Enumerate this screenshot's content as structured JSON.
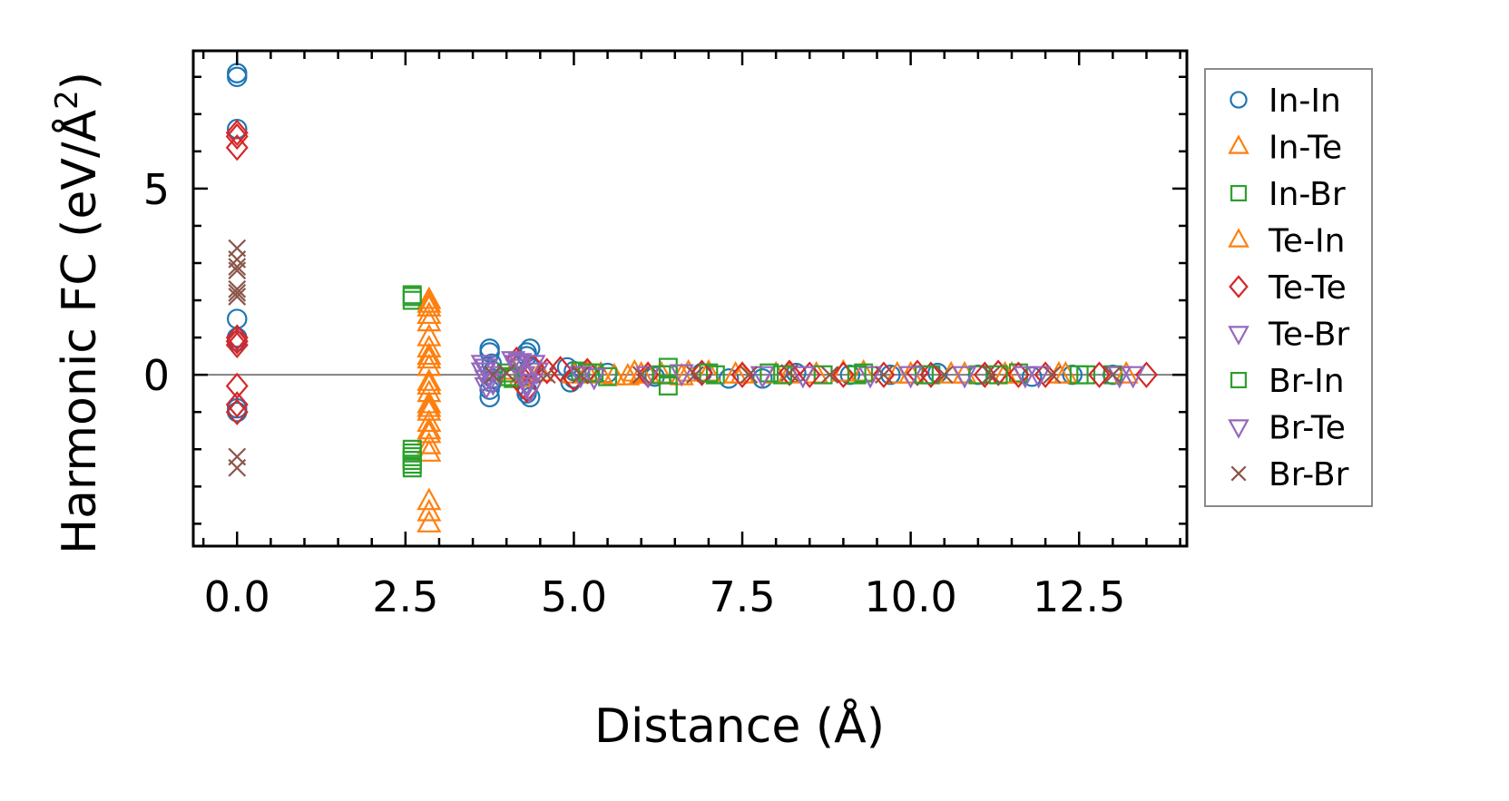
{
  "chart_data": {
    "type": "scatter",
    "title": "",
    "xlabel": "Distance (Å)",
    "ylabel": "Harmonic FC (eV/Å",
    "ylabel_sup": "2",
    "ylabel_tail": ")",
    "xlim": [
      -0.65,
      14.1
    ],
    "ylim": [
      -4.6,
      8.7
    ],
    "xticks": [
      0.0,
      2.5,
      5.0,
      7.5,
      10.0,
      12.5
    ],
    "xtick_labels": [
      "0.0",
      "2.5",
      "5.0",
      "7.5",
      "10.0",
      "12.5"
    ],
    "yticks": [
      0,
      5
    ],
    "ytick_labels": [
      "0",
      "5"
    ],
    "reference_line_y": 0,
    "legend_position": "right-outside",
    "series": [
      {
        "name": "In-In",
        "marker": "circle",
        "color": "#1f77b4",
        "x": [
          0,
          0,
          0,
          0,
          0,
          0,
          0,
          0,
          3.75,
          3.75,
          3.75,
          3.75,
          3.78,
          3.78,
          3.8,
          3.8,
          4.3,
          4.3,
          4.3,
          4.3,
          4.35,
          4.35,
          4.35,
          4.9,
          4.95,
          5.0,
          5.0,
          5.5,
          6.2,
          6.9,
          7.3,
          7.8,
          8.3,
          9.1,
          9.7,
          10.4,
          11.0,
          11.8,
          12.4,
          13.0
        ],
        "y": [
          8.1,
          8.0,
          6.6,
          1.5,
          1.0,
          0.9,
          -0.9,
          -1.0,
          0.7,
          0.6,
          -0.4,
          -0.6,
          0.3,
          -0.2,
          0.1,
          -0.1,
          0.6,
          0.5,
          -0.4,
          -0.5,
          0.7,
          -0.6,
          0.2,
          0.2,
          -0.2,
          0.1,
          -0.1,
          0.05,
          -0.05,
          0.05,
          -0.1,
          -0.1,
          0.05,
          0.0,
          0.0,
          0.05,
          0.0,
          -0.05,
          0.0,
          0.0
        ]
      },
      {
        "name": "In-Te",
        "marker": "triangle-up",
        "color": "#ff7f0e",
        "x": [
          2.85,
          2.85,
          2.85,
          2.85,
          2.85,
          2.85,
          2.85,
          2.85,
          2.85,
          2.85,
          2.85,
          2.85,
          2.85,
          2.85,
          2.85,
          2.85,
          2.85,
          2.85,
          4.1,
          4.2,
          4.5,
          5.0,
          5.4,
          5.6,
          5.9,
          6.1,
          6.3,
          6.6,
          7.0,
          7.5,
          8.0,
          8.6,
          9.3,
          10.0,
          10.8,
          11.5,
          12.3
        ],
        "y": [
          2.0,
          1.8,
          1.6,
          1.0,
          0.7,
          0.5,
          0.2,
          -0.2,
          -0.5,
          -0.8,
          -1.0,
          -1.3,
          -1.6,
          -1.9,
          -2.1,
          -3.4,
          -3.7,
          -4.0,
          0.1,
          -0.1,
          0.05,
          0.0,
          0.0,
          -0.05,
          0.05,
          0.0,
          0.0,
          -0.05,
          0.05,
          0.0,
          0.0,
          0.0,
          0.05,
          0.0,
          0.0,
          0.0,
          0.0
        ]
      },
      {
        "name": "In-Br",
        "marker": "square",
        "color": "#2ca02c",
        "x": [
          2.6,
          2.6,
          2.6,
          2.6,
          2.6,
          2.6,
          2.6,
          4.0,
          4.1,
          5.1,
          5.3,
          5.5,
          6.4,
          6.4,
          6.4,
          7.1,
          7.9,
          8.7,
          9.3,
          10.3,
          11.0,
          11.6,
          12.6,
          13.0
        ],
        "y": [
          2.1,
          2.0,
          -2.0,
          -2.1,
          -2.3,
          -2.4,
          -2.5,
          0.05,
          -0.1,
          0.1,
          0.05,
          -0.05,
          0.2,
          0.0,
          -0.3,
          0.0,
          0.05,
          0.0,
          0.05,
          0.0,
          0.0,
          0.05,
          0.0,
          0.0
        ]
      },
      {
        "name": "Te-In",
        "marker": "triangle-up",
        "color": "#ff7f0e",
        "x": [
          2.85,
          2.85,
          2.85,
          2.85,
          2.85,
          2.85,
          4.3,
          5.2,
          5.8,
          6.0,
          6.7,
          7.4,
          8.2,
          9.0,
          9.8,
          10.6,
          11.4,
          12.2,
          13.2
        ],
        "y": [
          1.9,
          1.4,
          0.4,
          -0.3,
          -0.9,
          -1.5,
          0.05,
          0.05,
          -0.05,
          0.0,
          0.05,
          0.0,
          0.0,
          0.05,
          0.0,
          0.0,
          0.0,
          0.0,
          0.0
        ]
      },
      {
        "name": "Te-Te",
        "marker": "diamond",
        "color": "#d62728",
        "x": [
          0,
          0,
          0,
          0,
          0,
          0,
          0,
          0,
          0,
          4.15,
          4.2,
          4.25,
          4.3,
          4.4,
          4.6,
          4.8,
          5.0,
          5.2,
          6.1,
          6.9,
          7.5,
          8.2,
          8.5,
          9.0,
          9.6,
          10.1,
          10.3,
          11.1,
          11.3,
          11.6,
          12.0,
          12.8,
          13.5
        ],
        "y": [
          6.5,
          6.4,
          6.1,
          1.0,
          0.9,
          0.8,
          -0.3,
          -0.8,
          -1.0,
          0.4,
          0.3,
          -0.3,
          -0.4,
          0.2,
          0.1,
          0.15,
          -0.1,
          0.1,
          0.0,
          0.05,
          0.0,
          0.05,
          0.0,
          0.0,
          0.0,
          0.05,
          0.0,
          0.0,
          0.05,
          0.0,
          0.0,
          0.0,
          0.0
        ]
      },
      {
        "name": "Te-Br",
        "marker": "triangle-down",
        "color": "#9467bd",
        "x": [
          3.65,
          3.65,
          3.7,
          3.7,
          3.75,
          4.1,
          4.15,
          4.2,
          4.25,
          4.3,
          4.35,
          4.4,
          5.3,
          6.1,
          7.8,
          9.4,
          10.8,
          11.9,
          13.3
        ],
        "y": [
          0.3,
          0.1,
          -0.1,
          -0.3,
          0.0,
          0.4,
          0.3,
          0.2,
          0.0,
          -0.2,
          -0.4,
          0.3,
          -0.05,
          0.0,
          0.0,
          0.0,
          0.0,
          0.0,
          0.0
        ]
      },
      {
        "name": "Br-In",
        "marker": "square",
        "color": "#2ca02c",
        "x": [
          2.6,
          2.6,
          2.6,
          4.05,
          5.2,
          6.3,
          7.0,
          8.1,
          9.2,
          10.2,
          11.3,
          12.5
        ],
        "y": [
          2.15,
          -2.2,
          -2.3,
          -0.05,
          0.05,
          0.0,
          0.05,
          0.0,
          0.0,
          0.0,
          0.0,
          0.0
        ]
      },
      {
        "name": "Br-Te",
        "marker": "triangle-down",
        "color": "#9467bd",
        "x": [
          3.7,
          3.8,
          4.2,
          4.3,
          4.45,
          5.1,
          6.6,
          8.4,
          10.0,
          11.7,
          13.1
        ],
        "y": [
          0.2,
          -0.2,
          0.35,
          -0.3,
          0.1,
          0.0,
          0.05,
          0.0,
          0.0,
          0.0,
          0.0
        ]
      },
      {
        "name": "Br-Br",
        "marker": "x",
        "color": "#8c564b",
        "x": [
          0,
          0,
          0,
          0,
          0,
          0,
          0,
          0,
          0,
          3.8,
          4.0,
          4.6,
          5.1,
          6.0,
          6.8,
          7.6,
          8.2,
          8.8,
          9.6,
          10.5,
          11.2,
          12.1,
          13.0
        ],
        "y": [
          3.4,
          3.1,
          2.9,
          2.8,
          2.3,
          2.2,
          2.1,
          -2.2,
          -2.5,
          0.0,
          0.05,
          0.0,
          0.0,
          0.0,
          0.0,
          0.0,
          0.05,
          0.0,
          0.0,
          0.0,
          0.0,
          0.0,
          0.0
        ]
      }
    ]
  }
}
